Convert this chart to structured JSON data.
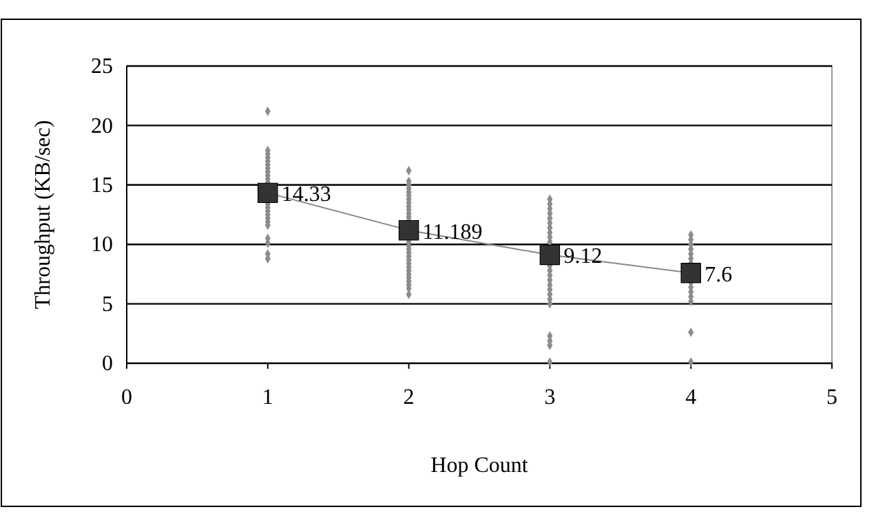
{
  "chart_data": {
    "type": "scatter",
    "xlabel": "Hop Count",
    "ylabel": "Throughput (KB/sec)",
    "xlim": [
      0,
      5
    ],
    "xticks": [
      0,
      1,
      2,
      3,
      4,
      5
    ],
    "ylim": [
      0,
      25
    ],
    "yticks": [
      0,
      5,
      10,
      15,
      20,
      25
    ],
    "grid": "y",
    "series": [
      {
        "marker": "diamond",
        "color": "#8c8c8c",
        "x": [
          1,
          1,
          1,
          1,
          1,
          1,
          1,
          1,
          1,
          1,
          1,
          1,
          1,
          1,
          1,
          1,
          1,
          1,
          1,
          1,
          1,
          1,
          2,
          2,
          2,
          2,
          2,
          2,
          2,
          2,
          2,
          2,
          2,
          2,
          2,
          2,
          2,
          2,
          2,
          2,
          2,
          2,
          2,
          2,
          2,
          2,
          2,
          2,
          2,
          2,
          3,
          3,
          3,
          3,
          3,
          3,
          3,
          3,
          3,
          3,
          3,
          3,
          3,
          3,
          3,
          3,
          3,
          3,
          3,
          3,
          3,
          3,
          3,
          4,
          4,
          4,
          4,
          4,
          4,
          4,
          4,
          4,
          4,
          4,
          4,
          4,
          4
        ],
        "values": [
          21.2,
          17.9,
          17.6,
          17.3,
          17.0,
          16.7,
          16.4,
          16.1,
          15.8,
          15.5,
          15.2,
          13.4,
          13.1,
          12.8,
          12.5,
          12.2,
          11.9,
          11.6,
          10.5,
          10.1,
          9.2,
          8.8,
          16.2,
          15.3,
          15.0,
          14.7,
          14.4,
          14.1,
          13.8,
          13.5,
          13.2,
          12.9,
          12.6,
          12.3,
          12.0,
          10.2,
          9.9,
          9.6,
          9.3,
          9.0,
          8.7,
          8.4,
          8.1,
          7.8,
          7.5,
          7.2,
          6.9,
          6.6,
          6.3,
          5.8,
          13.8,
          13.4,
          13.0,
          12.6,
          12.2,
          11.8,
          11.4,
          11.0,
          10.6,
          10.2,
          8.2,
          7.8,
          7.4,
          7.0,
          6.6,
          6.2,
          5.8,
          5.4,
          5.0,
          2.3,
          1.9,
          1.5,
          0.1,
          10.8,
          10.4,
          10.0,
          9.6,
          9.2,
          8.8,
          8.4,
          6.8,
          6.4,
          6.0,
          5.6,
          5.2,
          2.6,
          0.1
        ]
      },
      {
        "type": "line",
        "marker": "square",
        "color": "#333333",
        "x": [
          1,
          2,
          3,
          4
        ],
        "values": [
          14.33,
          11.189,
          9.12,
          7.6
        ],
        "value_labels": [
          "14.33",
          "11.189",
          "9.12",
          "7.6"
        ]
      }
    ]
  }
}
